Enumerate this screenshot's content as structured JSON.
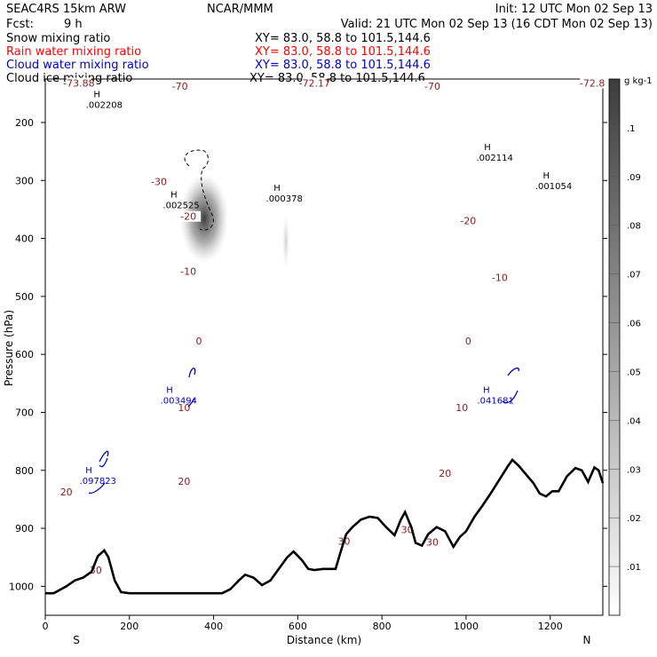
{
  "header": {
    "model": "SEAC4RS 15km ARW",
    "forecast_label": "Fcst:",
    "forecast_value": "9 h",
    "org": "NCAR/MMM",
    "init": "Init: 12 UTC Mon 02 Sep 13",
    "valid": "Valid: 21 UTC Mon 02 Sep 13 (16 CDT Mon 02 Sep 13)"
  },
  "fields": [
    {
      "name": "Snow mixing ratio",
      "xy": "XY=   83.0, 58.8 to 101.5,144.6",
      "color": "#000000"
    },
    {
      "name": "Rain water mixing ratio",
      "xy": "XY=  83.0, 58.8 to 101.5,144.6",
      "color": "#ff0000"
    },
    {
      "name": "Cloud water mixing ratio",
      "xy": "XY=  83.0, 58.8 to 101.5,144.6",
      "color": "#0000c8"
    },
    {
      "name": "Cloud ice mixing ratio",
      "xy": "XY=  83.0, 58.8 to 101.5,144.6",
      "color": "#000000"
    }
  ],
  "colors": {
    "temperature": "#8b1a1a",
    "cloud_water": "#0000c8",
    "terrain": "#000000",
    "snow_shade": "#333333"
  },
  "chart_data": {
    "type": "line",
    "title": "SEAC4RS 15km ARW",
    "xlabel": "Distance (km)",
    "ylabel": "Pressure (hPa)",
    "xlim": [
      0,
      1325
    ],
    "ylim": [
      1050,
      125
    ],
    "y_inverted": true,
    "x_ticks": [
      "0",
      "200",
      "400",
      "600",
      "800",
      "1000",
      "1200"
    ],
    "y_ticks": [
      "200",
      "300",
      "400",
      "500",
      "600",
      "700",
      "800",
      "900",
      "1000"
    ],
    "end_labels": {
      "left": "S",
      "right": "N"
    },
    "temperature_levels": [
      {
        "label": "-73.88",
        "x": 80,
        "p": 135
      },
      {
        "label": "-70",
        "x": 320,
        "p": 140
      },
      {
        "label": "-72.17",
        "x": 640,
        "p": 135
      },
      {
        "label": "-70",
        "x": 920,
        "p": 140
      },
      {
        "label": "-72.8",
        "x": 1300,
        "p": 135
      },
      {
        "label": "-30",
        "x": 270,
        "p": 305
      },
      {
        "label": "-20",
        "x": 340,
        "p": 365
      },
      {
        "label": "-20",
        "x": 1005,
        "p": 372
      },
      {
        "label": "-10",
        "x": 340,
        "p": 460
      },
      {
        "label": "-10",
        "x": 1080,
        "p": 470
      },
      {
        "label": "0",
        "x": 365,
        "p": 580
      },
      {
        "label": "0",
        "x": 1005,
        "p": 580
      },
      {
        "label": "10",
        "x": 330,
        "p": 695
      },
      {
        "label": "10",
        "x": 990,
        "p": 695
      },
      {
        "label": "20",
        "x": 50,
        "p": 840
      },
      {
        "label": "20",
        "x": 330,
        "p": 822
      },
      {
        "label": "20",
        "x": 950,
        "p": 808
      },
      {
        "label": "30",
        "x": 120,
        "p": 975
      },
      {
        "label": "30",
        "x": 710,
        "p": 925
      },
      {
        "label": "30",
        "x": 860,
        "p": 905
      },
      {
        "label": "30",
        "x": 920,
        "p": 927
      }
    ],
    "snow_extrema": [
      {
        "label": ".002208",
        "x": 140,
        "p": 172
      },
      {
        "label": ".002525",
        "x": 323,
        "p": 345
      },
      {
        "label": ".000378",
        "x": 568,
        "p": 333
      },
      {
        "label": ".002114",
        "x": 1068,
        "p": 263
      },
      {
        "label": ".001054",
        "x": 1208,
        "p": 312
      }
    ],
    "cloud_water_extrema": [
      {
        "label": ".003494",
        "x": 317,
        "p": 682
      },
      {
        "label": ".041681",
        "x": 1070,
        "p": 682
      },
      {
        "label": ".097823",
        "x": 125,
        "p": 820
      }
    ],
    "terrain": {
      "x": [
        0,
        20,
        50,
        70,
        90,
        110,
        125,
        140,
        150,
        165,
        180,
        200,
        220,
        260,
        300,
        340,
        380,
        400,
        420,
        440,
        460,
        475,
        495,
        515,
        535,
        555,
        575,
        590,
        610,
        625,
        640,
        660,
        690,
        700,
        715,
        730,
        750,
        770,
        790,
        810,
        830,
        845,
        855,
        870,
        880,
        895,
        910,
        930,
        950,
        970,
        985,
        1000,
        1020,
        1040,
        1060,
        1080,
        1100,
        1110,
        1125,
        1140,
        1160,
        1175,
        1190,
        1205,
        1220,
        1240,
        1260,
        1275,
        1290,
        1305,
        1315,
        1325
      ],
      "p": [
        1012,
        1012,
        1000,
        990,
        985,
        975,
        948,
        938,
        950,
        990,
        1010,
        1012,
        1012,
        1012,
        1012,
        1012,
        1012,
        1012,
        1012,
        1005,
        990,
        980,
        985,
        998,
        990,
        970,
        950,
        940,
        955,
        970,
        972,
        970,
        970,
        945,
        910,
        898,
        885,
        880,
        882,
        898,
        912,
        885,
        872,
        898,
        925,
        930,
        910,
        898,
        905,
        932,
        915,
        905,
        880,
        860,
        838,
        815,
        792,
        782,
        792,
        805,
        822,
        840,
        845,
        836,
        836,
        810,
        796,
        800,
        820,
        795,
        800,
        822
      ]
    },
    "shading_scale": {
      "unit": "g kg-1",
      "labels": [
        ".01",
        ".02",
        ".03",
        ".04",
        ".05",
        ".06",
        ".07",
        ".08",
        ".09",
        ".1"
      ]
    }
  }
}
